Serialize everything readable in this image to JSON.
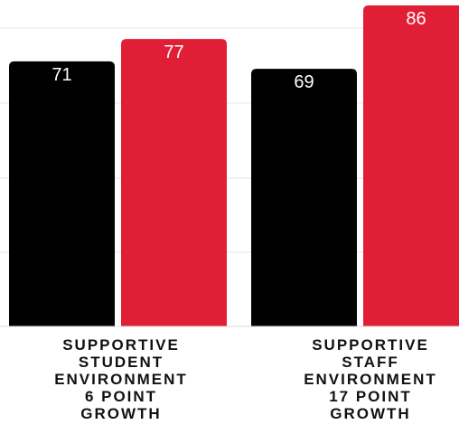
{
  "chart_data": {
    "type": "bar",
    "categories": [
      [
        "SUPPORTIVE",
        "STUDENT",
        "ENVIRONMENT",
        "6 POINT",
        "GROWTH"
      ],
      [
        "SUPPORTIVE",
        "STAFF",
        "ENVIRONMENT",
        "17 POINT",
        "GROWTH"
      ]
    ],
    "series": [
      {
        "values": [
          71,
          69
        ],
        "color": "#000000"
      },
      {
        "values": [
          77,
          86
        ],
        "color": "#e01f36"
      }
    ],
    "ylim": [
      0,
      86
    ],
    "grid": true,
    "legend": "none"
  }
}
